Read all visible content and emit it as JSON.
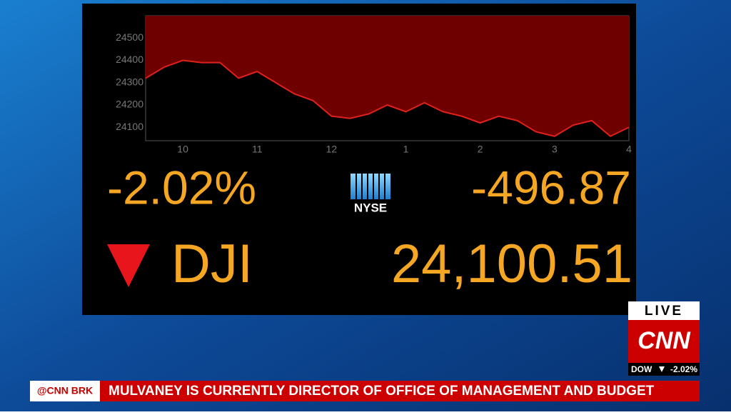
{
  "chart_data": {
    "type": "area",
    "x": [
      9.5,
      9.75,
      10,
      10.25,
      10.5,
      10.75,
      11,
      11.25,
      11.5,
      11.75,
      12,
      12.25,
      12.5,
      12.75,
      13,
      13.25,
      13.5,
      13.75,
      14,
      14.25,
      14.5,
      14.75,
      15,
      15.25,
      15.5,
      15.75,
      16
    ],
    "values": [
      24320,
      24370,
      24400,
      24390,
      24390,
      24320,
      24350,
      24300,
      24250,
      24220,
      24150,
      24140,
      24160,
      24200,
      24170,
      24210,
      24170,
      24150,
      24120,
      24150,
      24130,
      24080,
      24060,
      24110,
      24130,
      24060,
      24100
    ],
    "color": "#e0201a",
    "fill": "#6e0000",
    "xlim": [
      9.5,
      16
    ],
    "ylim": [
      24040,
      24600
    ],
    "xticks": [
      10,
      11,
      {
        "value": 12,
        "label": "12"
      },
      {
        "value": 13,
        "label": "1"
      },
      {
        "value": 14,
        "label": "2"
      },
      {
        "value": 15,
        "label": "3"
      },
      {
        "value": 16,
        "label": "4"
      }
    ],
    "yticks": [
      24100,
      24200,
      24300,
      24400,
      24500
    ]
  },
  "quote": {
    "percent": "-2.02%",
    "exchange": "NYSE",
    "change": "-496.87",
    "symbol": "DJI",
    "price": "24,100.51"
  },
  "bug": {
    "live": "LIVE",
    "network": "CNN",
    "index": "DOW",
    "index_change": "-2.02%"
  },
  "ticker": {
    "tag": "@CNN BRK",
    "headline": "MULVANEY IS CURRENTLY DIRECTOR OF OFFICE OF MANAGEMENT AND BUDGET"
  }
}
